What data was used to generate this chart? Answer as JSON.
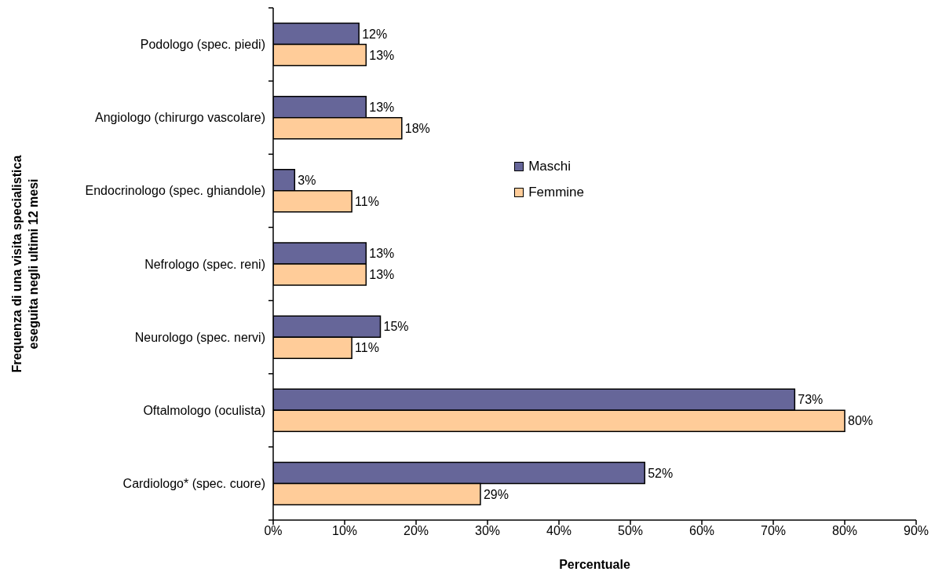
{
  "chart_data": {
    "type": "bar",
    "orientation": "horizontal",
    "xlabel": "Percentuale",
    "ylabel": "Frequenza di una visita specialistica\neseguita negli ultimi 12 mesi",
    "categories": [
      "Podologo (spec. piedi)",
      "Angiologo (chirurgo vascolare)",
      "Endocrinologo (spec. ghiandole)",
      "Nefrologo (spec. reni)",
      "Neurologo (spec. nervi)",
      "Oftalmologo (oculista)",
      "Cardiologo* (spec. cuore)"
    ],
    "series": [
      {
        "name": "Maschi",
        "color": "#666699",
        "values": [
          12,
          13,
          3,
          13,
          15,
          73,
          52
        ],
        "value_labels": [
          "12%",
          "13%",
          "3%",
          "13%",
          "15%",
          "73%",
          "52%"
        ]
      },
      {
        "name": "Femmine",
        "color": "#ffcc99",
        "values": [
          13,
          18,
          11,
          13,
          11,
          80,
          29
        ],
        "value_labels": [
          "13%",
          "18%",
          "11%",
          "13%",
          "11%",
          "80%",
          "29%"
        ]
      }
    ],
    "xlim": [
      0,
      90
    ],
    "xticks": [
      {
        "value": 0,
        "label": "0%"
      },
      {
        "value": 10,
        "label": "10%"
      },
      {
        "value": 20,
        "label": "20%"
      },
      {
        "value": 30,
        "label": "30%"
      },
      {
        "value": 40,
        "label": "40%"
      },
      {
        "value": 50,
        "label": "50%"
      },
      {
        "value": 60,
        "label": "60%"
      },
      {
        "value": 70,
        "label": "70%"
      },
      {
        "value": 80,
        "label": "80%"
      },
      {
        "value": 90,
        "label": "90%"
      }
    ],
    "legend": "top"
  }
}
